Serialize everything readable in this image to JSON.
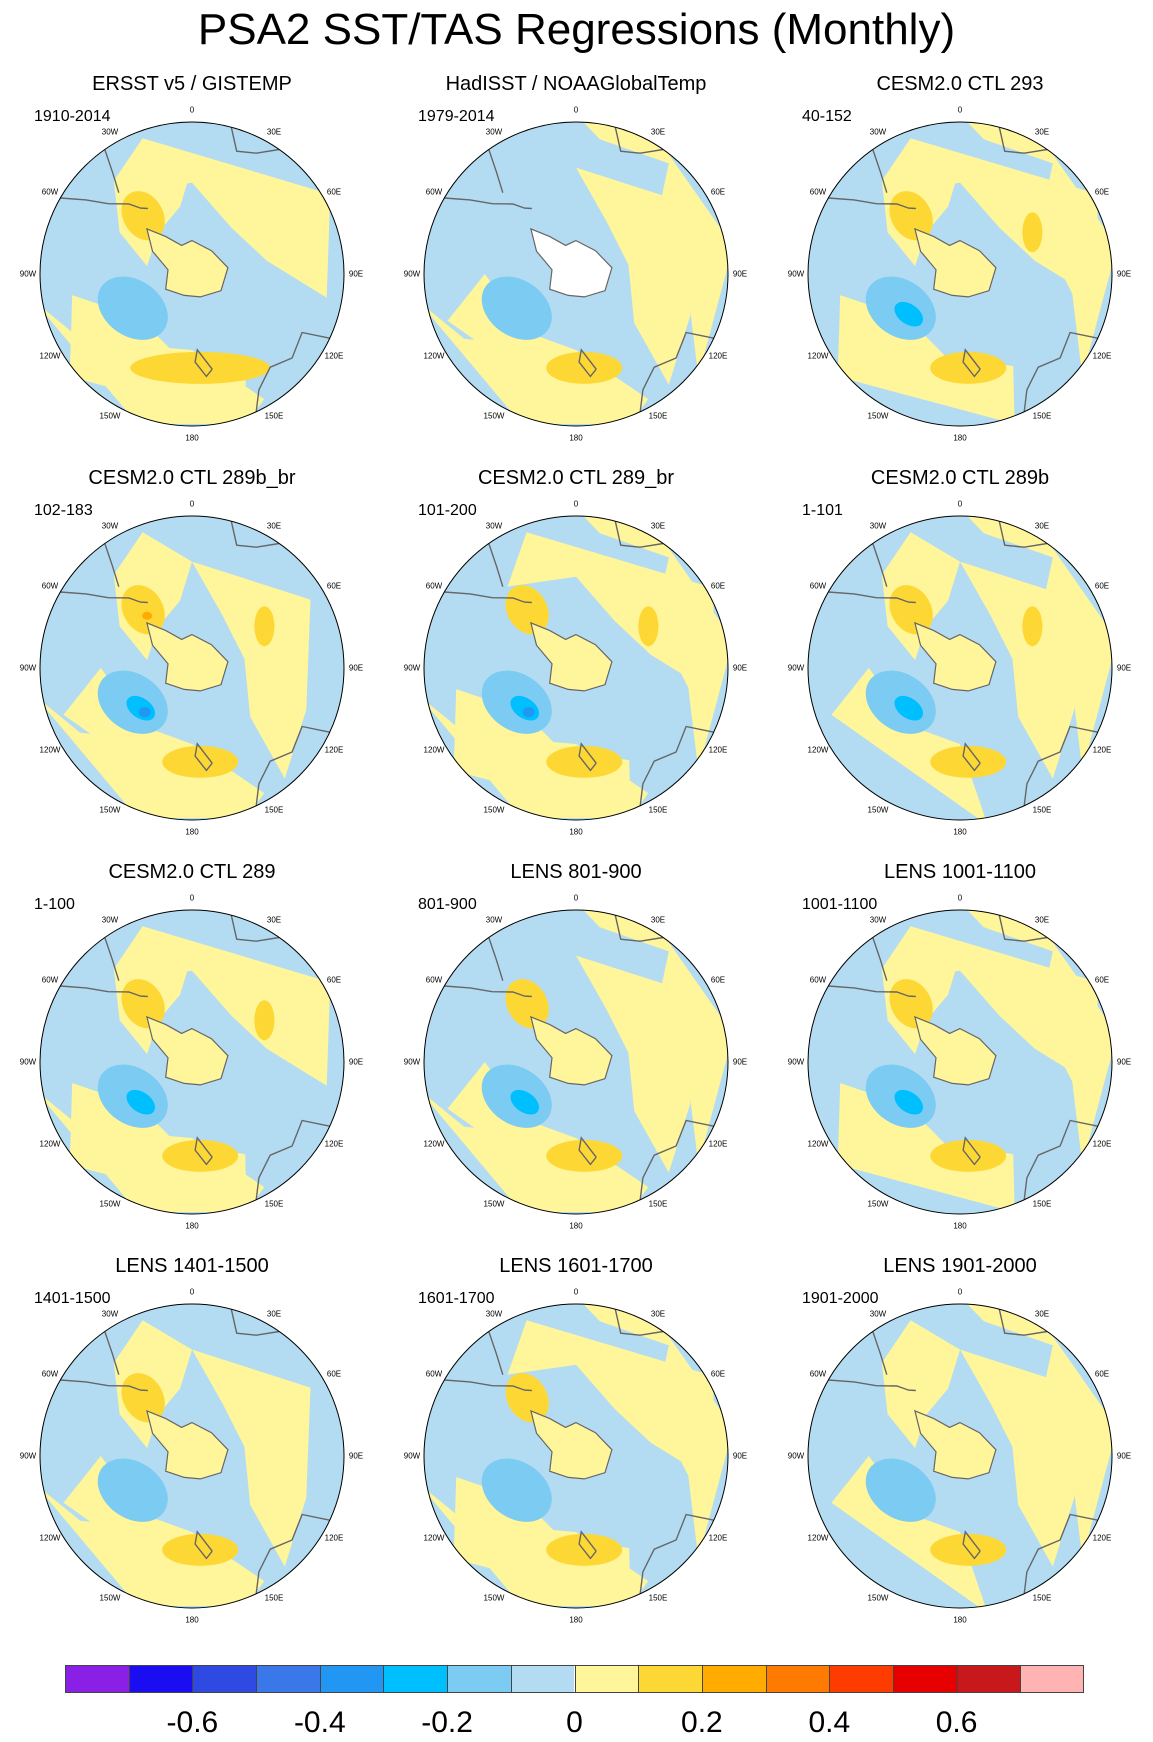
{
  "title": "PSA2 SST/TAS Regressions (Monthly)",
  "longitude_labels": [
    "0",
    "30E",
    "60E",
    "90E",
    "120E",
    "150E",
    "180",
    "150W",
    "120W",
    "90W",
    "60W",
    "30W"
  ],
  "colors": {
    "coastline": "#666666",
    "missing": "#ffffff",
    "frame": "#000000"
  },
  "panels": [
    {
      "title": "ERSST v5 / GISTEMP",
      "period": "1910-2014"
    },
    {
      "title": "HadISST / NOAAGlobalTemp",
      "period": "1979-2014"
    },
    {
      "title": "CESM2.0 CTL 293",
      "period": "40-152"
    },
    {
      "title": "CESM2.0 CTL 289b_br",
      "period": "102-183"
    },
    {
      "title": "CESM2.0 CTL 289_br",
      "period": "101-200"
    },
    {
      "title": "CESM2.0 CTL 289b",
      "period": "1-101"
    },
    {
      "title": "CESM2.0 CTL 289",
      "period": "1-100"
    },
    {
      "title": "LENS 801-900",
      "period": "801-900"
    },
    {
      "title": "LENS 1001-1100",
      "period": "1001-1100"
    },
    {
      "title": "LENS 1401-1500",
      "period": "1401-1500"
    },
    {
      "title": "LENS 1601-1700",
      "period": "1601-1700"
    },
    {
      "title": "LENS 1901-2000",
      "period": "1901-2000"
    }
  ],
  "colorbar": {
    "colors": [
      "#8a1fe6",
      "#1a0df2",
      "#2f4ae3",
      "#3a78ea",
      "#2196f3",
      "#00bfff",
      "#7ccbf2",
      "#b3dcf2",
      "#fff59a",
      "#fdd835",
      "#ffab00",
      "#ff7a00",
      "#ff3c00",
      "#e60000",
      "#c8181c",
      "#ffb3b3"
    ],
    "tick_labels": [
      "-0.6",
      "-0.4",
      "-0.2",
      "0",
      "0.2",
      "0.4",
      "0.6"
    ],
    "tick_values": [
      -0.6,
      -0.4,
      -0.2,
      0,
      0.2,
      0.4,
      0.6
    ]
  }
}
